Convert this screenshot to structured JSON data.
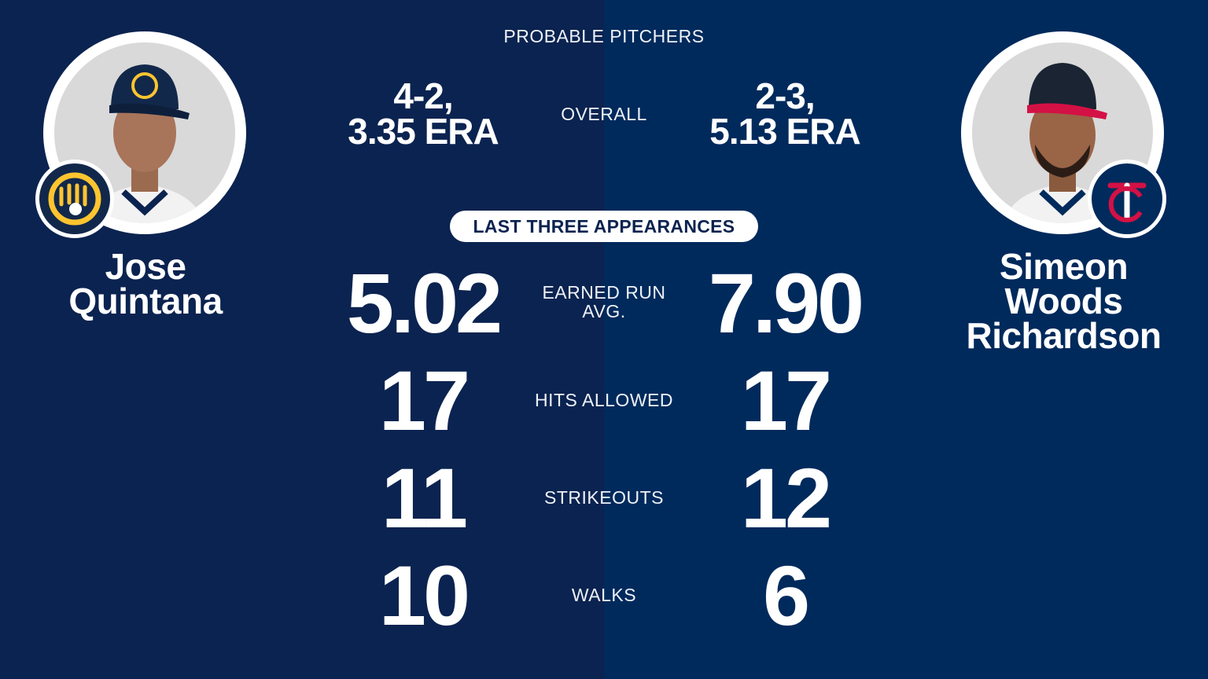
{
  "header": {
    "title": "PROBABLE PITCHERS"
  },
  "left_pitcher": {
    "name_line1": "Jose",
    "name_line2": "Quintana",
    "team_logo": "brewers-logo",
    "overall_record": "4-2,",
    "overall_era": "3.35 ERA"
  },
  "right_pitcher": {
    "name_line1": "Simeon",
    "name_line2": "Woods",
    "name_line3": "Richardson",
    "team_logo": "twins-logo",
    "overall_record": "2-3,",
    "overall_era": "5.13 ERA"
  },
  "overall_label": "OVERALL",
  "section_label": "LAST THREE APPEARANCES",
  "stats": [
    {
      "label_line1": "EARNED RUN",
      "label_line2": "AVG.",
      "left": "5.02",
      "right": "7.90"
    },
    {
      "label_line1": "HITS ALLOWED",
      "left": "17",
      "right": "17"
    },
    {
      "label_line1": "STRIKEOUTS",
      "left": "11",
      "right": "12"
    },
    {
      "label_line1": "WALKS",
      "left": "10",
      "right": "6"
    }
  ],
  "colors": {
    "left_bg": "#0b2350",
    "right_bg": "#002a5c",
    "brewers_gold": "#ffc52f",
    "twins_red": "#d31145"
  }
}
